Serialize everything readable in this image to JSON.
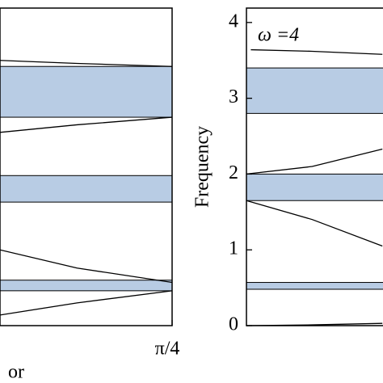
{
  "chart_data": [
    {
      "type": "line",
      "xlim": [
        0.45,
        0.785
      ],
      "ylim": [
        0,
        4.19
      ],
      "xticks": [
        {
          "value": 0.785,
          "label": "π/4"
        }
      ],
      "xlabel": "or",
      "band_color": "#b8cce4",
      "bands": [
        [
          2.75,
          3.42
        ],
        [
          1.63,
          1.98
        ],
        [
          0.46,
          0.6
        ]
      ],
      "series": [
        {
          "color": "#000000",
          "x": [
            0.45,
            0.6,
            0.785
          ],
          "values": [
            3.5,
            3.46,
            3.42
          ]
        },
        {
          "color": "#000000",
          "x": [
            0.45,
            0.6,
            0.785
          ],
          "values": [
            2.55,
            2.65,
            2.75
          ]
        },
        {
          "color": "#000000",
          "x": [
            0.45,
            0.6,
            0.785
          ],
          "values": [
            1.0,
            0.76,
            0.57
          ]
        },
        {
          "color": "#000000",
          "x": [
            0.45,
            0.6,
            0.785
          ],
          "values": [
            0.14,
            0.3,
            0.46
          ]
        }
      ]
    },
    {
      "type": "line",
      "xlim": [
        0,
        0.785
      ],
      "ylim": [
        0,
        4.19
      ],
      "yticks": [
        0,
        1,
        2,
        3,
        4
      ],
      "ylabel": "Frequency",
      "annotation": "ω =4",
      "band_color": "#b8cce4",
      "bands": [
        [
          2.8,
          3.4
        ],
        [
          1.65,
          2.0
        ],
        [
          0.48,
          0.57
        ]
      ],
      "series": [
        {
          "color": "#000000",
          "x": [
            0.02,
            0.3,
            0.62
          ],
          "values": [
            3.64,
            3.62,
            3.58
          ]
        },
        {
          "color": "#000000",
          "x": [
            0,
            0.3,
            0.62
          ],
          "values": [
            2.0,
            2.1,
            2.33
          ]
        },
        {
          "color": "#000000",
          "x": [
            0,
            0.3,
            0.62
          ],
          "values": [
            1.65,
            1.4,
            1.05
          ]
        },
        {
          "color": "#000000",
          "x": [
            0,
            0.3,
            0.62
          ],
          "values": [
            0,
            0.01,
            0.03
          ]
        }
      ]
    }
  ]
}
